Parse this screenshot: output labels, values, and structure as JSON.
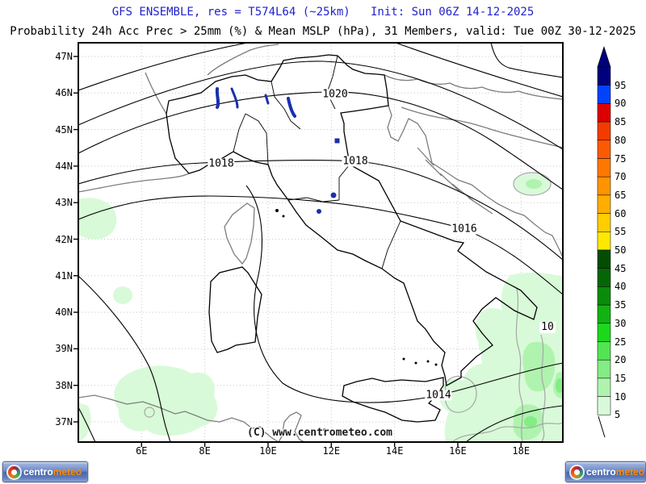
{
  "header": {
    "model_line": "GFS ENSEMBLE, res = T574L64 (~25km)   Init: Sun 06Z 14-12-2025",
    "product_line": "Probability 24h Acc Prec > 25mm (%) & Mean MSLP (hPa), 31 Members, valid: Tue 00Z 30-12-2025",
    "model_line_color": "#2222cc"
  },
  "map": {
    "lat_labels": [
      "47N",
      "46N",
      "45N",
      "44N",
      "43N",
      "42N",
      "41N",
      "40N",
      "39N",
      "38N",
      "37N"
    ],
    "lon_labels": [
      "6E",
      "8E",
      "10E",
      "12E",
      "14E",
      "16E",
      "18E"
    ],
    "isobar_labels": [
      "1020",
      "1018",
      "1018",
      "1016",
      "1014"
    ],
    "isobar_values_hpa": [
      1020,
      1018,
      1016,
      1014
    ],
    "prob_contour_label": "10",
    "copyright": "(C) www.centrometeo.com"
  },
  "colorbar": {
    "values": [
      95,
      90,
      85,
      80,
      75,
      70,
      65,
      60,
      55,
      50,
      45,
      40,
      35,
      30,
      25,
      20,
      15,
      10,
      5
    ],
    "colors": [
      "#00007e",
      "#0143fd",
      "#dc0000",
      "#f33b00",
      "#fc5a00",
      "#fe7800",
      "#ff9400",
      "#ffae00",
      "#ffce00",
      "#ffe800",
      "#024d02",
      "#056605",
      "#0b8b0b",
      "#12b212",
      "#1cd81c",
      "#52e452",
      "#84ec84",
      "#aff3af",
      "#d8fad8"
    ]
  },
  "shading_colors": {
    "prob_5_10": "#d8fad8",
    "prob_10_15": "#aff3af",
    "prob_15_20": "#84ec84"
  },
  "logo": {
    "part1": "centro",
    "part2": "meteo"
  }
}
